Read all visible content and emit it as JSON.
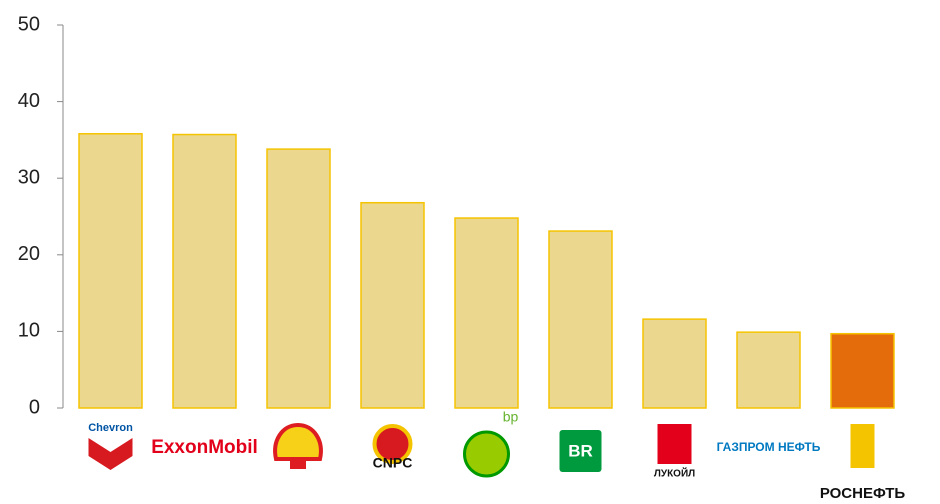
{
  "chart_data": {
    "type": "bar",
    "categories": [
      "Chevron",
      "ExxonMobil",
      null,
      "CNPC",
      "bp",
      "BR",
      "ЛУКОЙЛ",
      "ГАЗПРОМ НЕФТЬ",
      "РОСНЕФТЬ"
    ],
    "values": [
      35.8,
      35.7,
      33.8,
      26.8,
      24.8,
      23.1,
      11.6,
      9.9,
      9.7
    ],
    "colors": [
      "#ebd78e",
      "#ebd78e",
      "#ebd78e",
      "#ebd78e",
      "#ebd78e",
      "#ebd78e",
      "#ebd78e",
      "#ebd78e",
      "#e46c0a"
    ],
    "ylim": [
      0,
      50
    ],
    "yticks": [
      0,
      10,
      20,
      30,
      40,
      50
    ]
  }
}
